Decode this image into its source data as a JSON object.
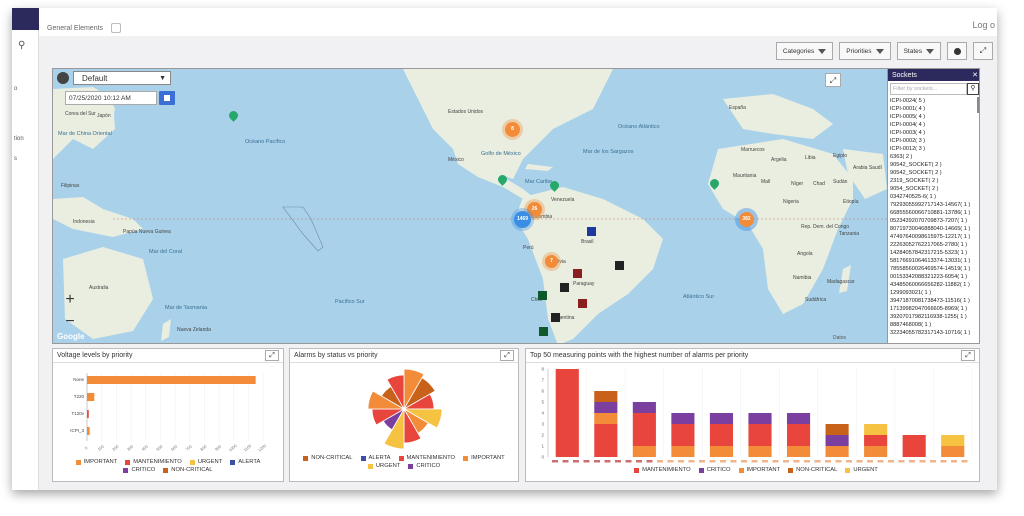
{
  "app": {
    "title": "General Elements",
    "logout": "Log o",
    "nav_fragments": [
      "o",
      "tion",
      "s"
    ]
  },
  "filters": {
    "categories": "Categories",
    "priorities": "Priorities",
    "states": "States"
  },
  "map": {
    "view_select": "Default",
    "date": "07/25/2020 10:12 AM",
    "attribution": "Google",
    "credit": "Datos",
    "zoom_in": "+",
    "zoom_out": "−",
    "clusters": [
      "8",
      "26",
      "1469",
      "7",
      "382"
    ],
    "labels": {
      "canada_us": "Estados Unidos",
      "mexico": "México",
      "gulf": "Golfo de México",
      "caribbean": "Mar Caribe",
      "venezuela": "Venezuela",
      "colombia": "Colombia",
      "peru": "Perú",
      "brazil": "Brasil",
      "bolivia": "Bolivia",
      "paraguay": "Paraguay",
      "argentina": "Argentina",
      "chile": "Chile",
      "atlantic_n": "Océano Atlántico",
      "atlantic_s": "Atlántico Sur",
      "pacific_n": "Océano Pacífico",
      "pacific_s": "Pacífico Sur",
      "japan": "Japón",
      "korea": "Corea del Sur",
      "china": "China",
      "philippines": "Filipinas",
      "indonesia": "Indonesia",
      "png": "Papúa Nueva Guinea",
      "australia": "Australia",
      "coral": "Mar del Coral",
      "tasman": "Mar de Tasmania",
      "nz": "Nueva Zelanda",
      "china_sea": "Mar de China Oriental",
      "sargasso": "Mar de los Sargazos",
      "morocco": "Marruecos",
      "algeria": "Argelia",
      "libya": "Libia",
      "egypt": "Egipto",
      "mali": "Malí",
      "niger": "Níger",
      "chad": "Chad",
      "sudan": "Sudán",
      "nigeria": "Nigeria",
      "ethiopia": "Etiopía",
      "drc": "Rep. Dem. del Congo",
      "angola": "Angola",
      "namibia": "Namibia",
      "south_africa": "Sudáfrica",
      "madagascar": "Madagascar",
      "tanzania": "Tanzania",
      "spain": "España",
      "mauritania": "Mauritania",
      "saudi": "Arabia Saudí"
    }
  },
  "sockets": {
    "title": "Sockets",
    "close": "✕",
    "placeholder": "Filter by sockets...",
    "items": [
      "ICPI-0024( 5 )",
      "ICPI-0001( 4 )",
      "ICPI-0005( 4 )",
      "ICPI-0004( 4 )",
      "ICPI-0003( 4 )",
      "ICPI-0002( 3 )",
      "ICPI-0012( 3 )",
      "6363( 2 )",
      "90542_SOCKET( 2 )",
      "90542_SOCKET( 2 )",
      "2319_SOCKET( 2 )",
      "9054_SOCKET( 2 )",
      "0342740525-6( 1 )",
      "79293055992717143-14567( 1 )",
      "66855560066710881-13786( 1 )",
      "05234392070709873-7207( 1 )",
      "80719730046888040-14665( 1 )",
      "47497640098615975-12217( 1 )",
      "22263052762217065-2780( 1 )",
      "14284057842317215-5323( 1 )",
      "58176691064613374-13031( 1 )",
      "78558560026469574-14519( 1 )",
      "00153342088321223-6054( 1 )",
      "43485060066656282-11882( 1 )",
      "1299093021( 1 )",
      "39471870081738473-11516( 1 )",
      "17139982047066605-8969( 1 )",
      "39207017982116938-1255( 1 )",
      "8887468008( 1 )",
      "32234055782317143-10716( 1 )"
    ]
  },
  "voltage": {
    "title": "Voltage levels by priority",
    "legend": [
      {
        "name": "IMPORTANT",
        "color": "#f28c38"
      },
      {
        "name": "MANTENIMIENTO",
        "color": "#e8453c"
      },
      {
        "name": "URGENT",
        "color": "#f5c242"
      },
      {
        "name": "ALERTA",
        "color": "#3b4fa8"
      },
      {
        "name": "CRITICO",
        "color": "#7b3fa0"
      },
      {
        "name": "NON-CRITICAL",
        "color": "#c8621a"
      }
    ],
    "categories": [
      "None",
      "T220",
      "T120v",
      "ICPI_3"
    ],
    "values": [
      1150,
      50,
      12,
      18
    ],
    "xmax": 1200
  },
  "alarms": {
    "title": "Alarms by status vs priority",
    "legend": [
      {
        "name": "NON-CRITICAL",
        "color": "#c8621a"
      },
      {
        "name": "ALERTA",
        "color": "#3b4fa8"
      },
      {
        "name": "MANTENIMIENTO",
        "color": "#e8453c"
      },
      {
        "name": "IMPORTANT",
        "color": "#f28c38"
      },
      {
        "name": "URGENT",
        "color": "#f5c242"
      },
      {
        "name": "CRITICO",
        "color": "#7b3fa0"
      }
    ],
    "slices": [
      {
        "color": "#f28c38",
        "r": 1.0
      },
      {
        "color": "#c8621a",
        "r": 0.9
      },
      {
        "color": "#e8453c",
        "r": 0.75
      },
      {
        "color": "#f5c242",
        "r": 0.95
      },
      {
        "color": "#f28c38",
        "r": 0.7
      },
      {
        "color": "#e8453c",
        "r": 0.85
      },
      {
        "color": "#f5c242",
        "r": 1.0
      },
      {
        "color": "#7b3fa0",
        "r": 0.6
      },
      {
        "color": "#e8453c",
        "r": 0.8
      },
      {
        "color": "#f28c38",
        "r": 0.9
      },
      {
        "color": "#c8621a",
        "r": 0.65
      },
      {
        "color": "#e8453c",
        "r": 0.85
      }
    ]
  },
  "top50": {
    "title": "Top 50 measuring points with the highest number of alarms per priority",
    "legend": [
      {
        "name": "MANTENIMIENTO",
        "color": "#e8453c"
      },
      {
        "name": "CRITICO",
        "color": "#7b3fa0"
      },
      {
        "name": "IMPORTANT",
        "color": "#f28c38"
      },
      {
        "name": "NON-CRITICAL",
        "color": "#c8621a"
      },
      {
        "name": "URGENT",
        "color": "#f5c242"
      }
    ],
    "yticks": [
      "0",
      "1",
      "2",
      "3",
      "4",
      "5",
      "6",
      "7",
      "8"
    ],
    "ymax": 8,
    "bars": [
      [
        {
          "s": "MANTENIMIENTO",
          "v": 8
        }
      ],
      [
        {
          "s": "MANTENIMIENTO",
          "v": 3
        },
        {
          "s": "IMPORTANT",
          "v": 1
        },
        {
          "s": "CRITICO",
          "v": 1
        },
        {
          "s": "NON-CRITICAL",
          "v": 1
        }
      ],
      [
        {
          "s": "IMPORTANT",
          "v": 1
        },
        {
          "s": "MANTENIMIENTO",
          "v": 3
        },
        {
          "s": "CRITICO",
          "v": 1
        }
      ],
      [
        {
          "s": "IMPORTANT",
          "v": 1
        },
        {
          "s": "MANTENIMIENTO",
          "v": 2
        },
        {
          "s": "CRITICO",
          "v": 1
        }
      ],
      [
        {
          "s": "IMPORTANT",
          "v": 1
        },
        {
          "s": "MANTENIMIENTO",
          "v": 2
        },
        {
          "s": "CRITICO",
          "v": 1
        }
      ],
      [
        {
          "s": "IMPORTANT",
          "v": 1
        },
        {
          "s": "MANTENIMIENTO",
          "v": 2
        },
        {
          "s": "CRITICO",
          "v": 1
        }
      ],
      [
        {
          "s": "IMPORTANT",
          "v": 1
        },
        {
          "s": "MANTENIMIENTO",
          "v": 2
        },
        {
          "s": "CRITICO",
          "v": 1
        }
      ],
      [
        {
          "s": "IMPORTANT",
          "v": 1
        },
        {
          "s": "CRITICO",
          "v": 1
        },
        {
          "s": "NON-CRITICAL",
          "v": 1
        }
      ],
      [
        {
          "s": "IMPORTANT",
          "v": 1
        },
        {
          "s": "MANTENIMIENTO",
          "v": 1
        },
        {
          "s": "URGENT",
          "v": 1
        }
      ],
      [
        {
          "s": "MANTENIMIENTO",
          "v": 2
        }
      ],
      [
        {
          "s": "IMPORTANT",
          "v": 1
        },
        {
          "s": "URGENT",
          "v": 1
        }
      ]
    ]
  }
}
